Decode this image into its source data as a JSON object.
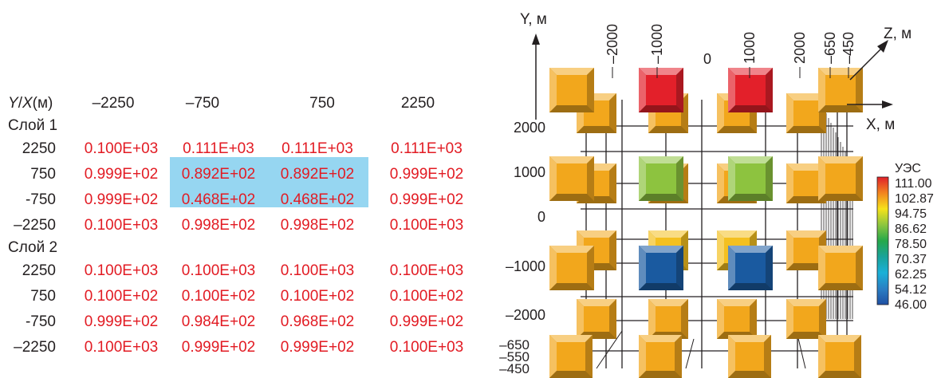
{
  "table": {
    "corner_label_y": "Y",
    "corner_label_sep": "/",
    "corner_label_x": "X",
    "corner_label_unit": "(м)",
    "columns": [
      "–2250",
      "–750",
      "750",
      "2250"
    ],
    "layers": [
      {
        "title": "Слой 1",
        "rows": [
          {
            "y": "2250",
            "values": [
              "0.100E+03",
              "0.111E+03",
              "0.111E+03",
              "0.111E+03"
            ]
          },
          {
            "y": "750",
            "values": [
              "0.999E+02",
              "0.892E+02",
              "0.892E+02",
              "0.999E+02"
            ]
          },
          {
            "y": "-750",
            "values": [
              "0.999E+02",
              "0.468E+02",
              "0.468E+02",
              "0.999E+02"
            ]
          },
          {
            "y": "–2250",
            "values": [
              "0.100E+03",
              "0.998E+02",
              "0.998E+02",
              "0.100E+03"
            ]
          }
        ]
      },
      {
        "title": "Слой 2",
        "rows": [
          {
            "y": "2250",
            "values": [
              "0.100E+03",
              "0.100E+03",
              "0.100E+03",
              "0.100E+03"
            ]
          },
          {
            "y": "750",
            "values": [
              "0.100E+02",
              "0.100E+02",
              "0.100E+02",
              "0.100E+02"
            ]
          },
          {
            "y": "-750",
            "values": [
              "0.999E+02",
              "0.984E+02",
              "0.968E+02",
              "0.999E+02"
            ]
          },
          {
            "y": "–2250",
            "values": [
              "0.100E+03",
              "0.999E+02",
              "0.999E+02",
              "0.100E+03"
            ]
          }
        ]
      }
    ],
    "highlight_color": "#96d6f1",
    "value_color": "#e21b23"
  },
  "figure": {
    "y_axis_label": "Y, м",
    "x_axis_label": "X, м",
    "z_axis_label": "Z, м",
    "top_ticks": [
      "–2000",
      "–1000",
      "0",
      "1000",
      "2000",
      "–650",
      "–450"
    ],
    "left_ticks": [
      "2000",
      "1000",
      "0",
      "–1000",
      "–2000"
    ],
    "corner_ticks": [
      "–650",
      "–550",
      "–450"
    ],
    "block_colors": {
      "default": "#f2a71c",
      "red": "#e3202a",
      "green": "#8dc33f",
      "blue": "#1a5aa0",
      "yellow": "#f4c020"
    },
    "colorbar": {
      "title": "УЭС",
      "labels": [
        "111.00",
        "102.87",
        "94.75",
        "86.62",
        "78.50",
        "70.37",
        "62.25",
        "54.12",
        "46.00"
      ],
      "colors": [
        "#e0202a",
        "#f2841f",
        "#f6e21a",
        "#8dc63f",
        "#25a84a",
        "#19a39a",
        "#1ab0d8",
        "#2a7fc4",
        "#1f4fa3"
      ]
    }
  }
}
